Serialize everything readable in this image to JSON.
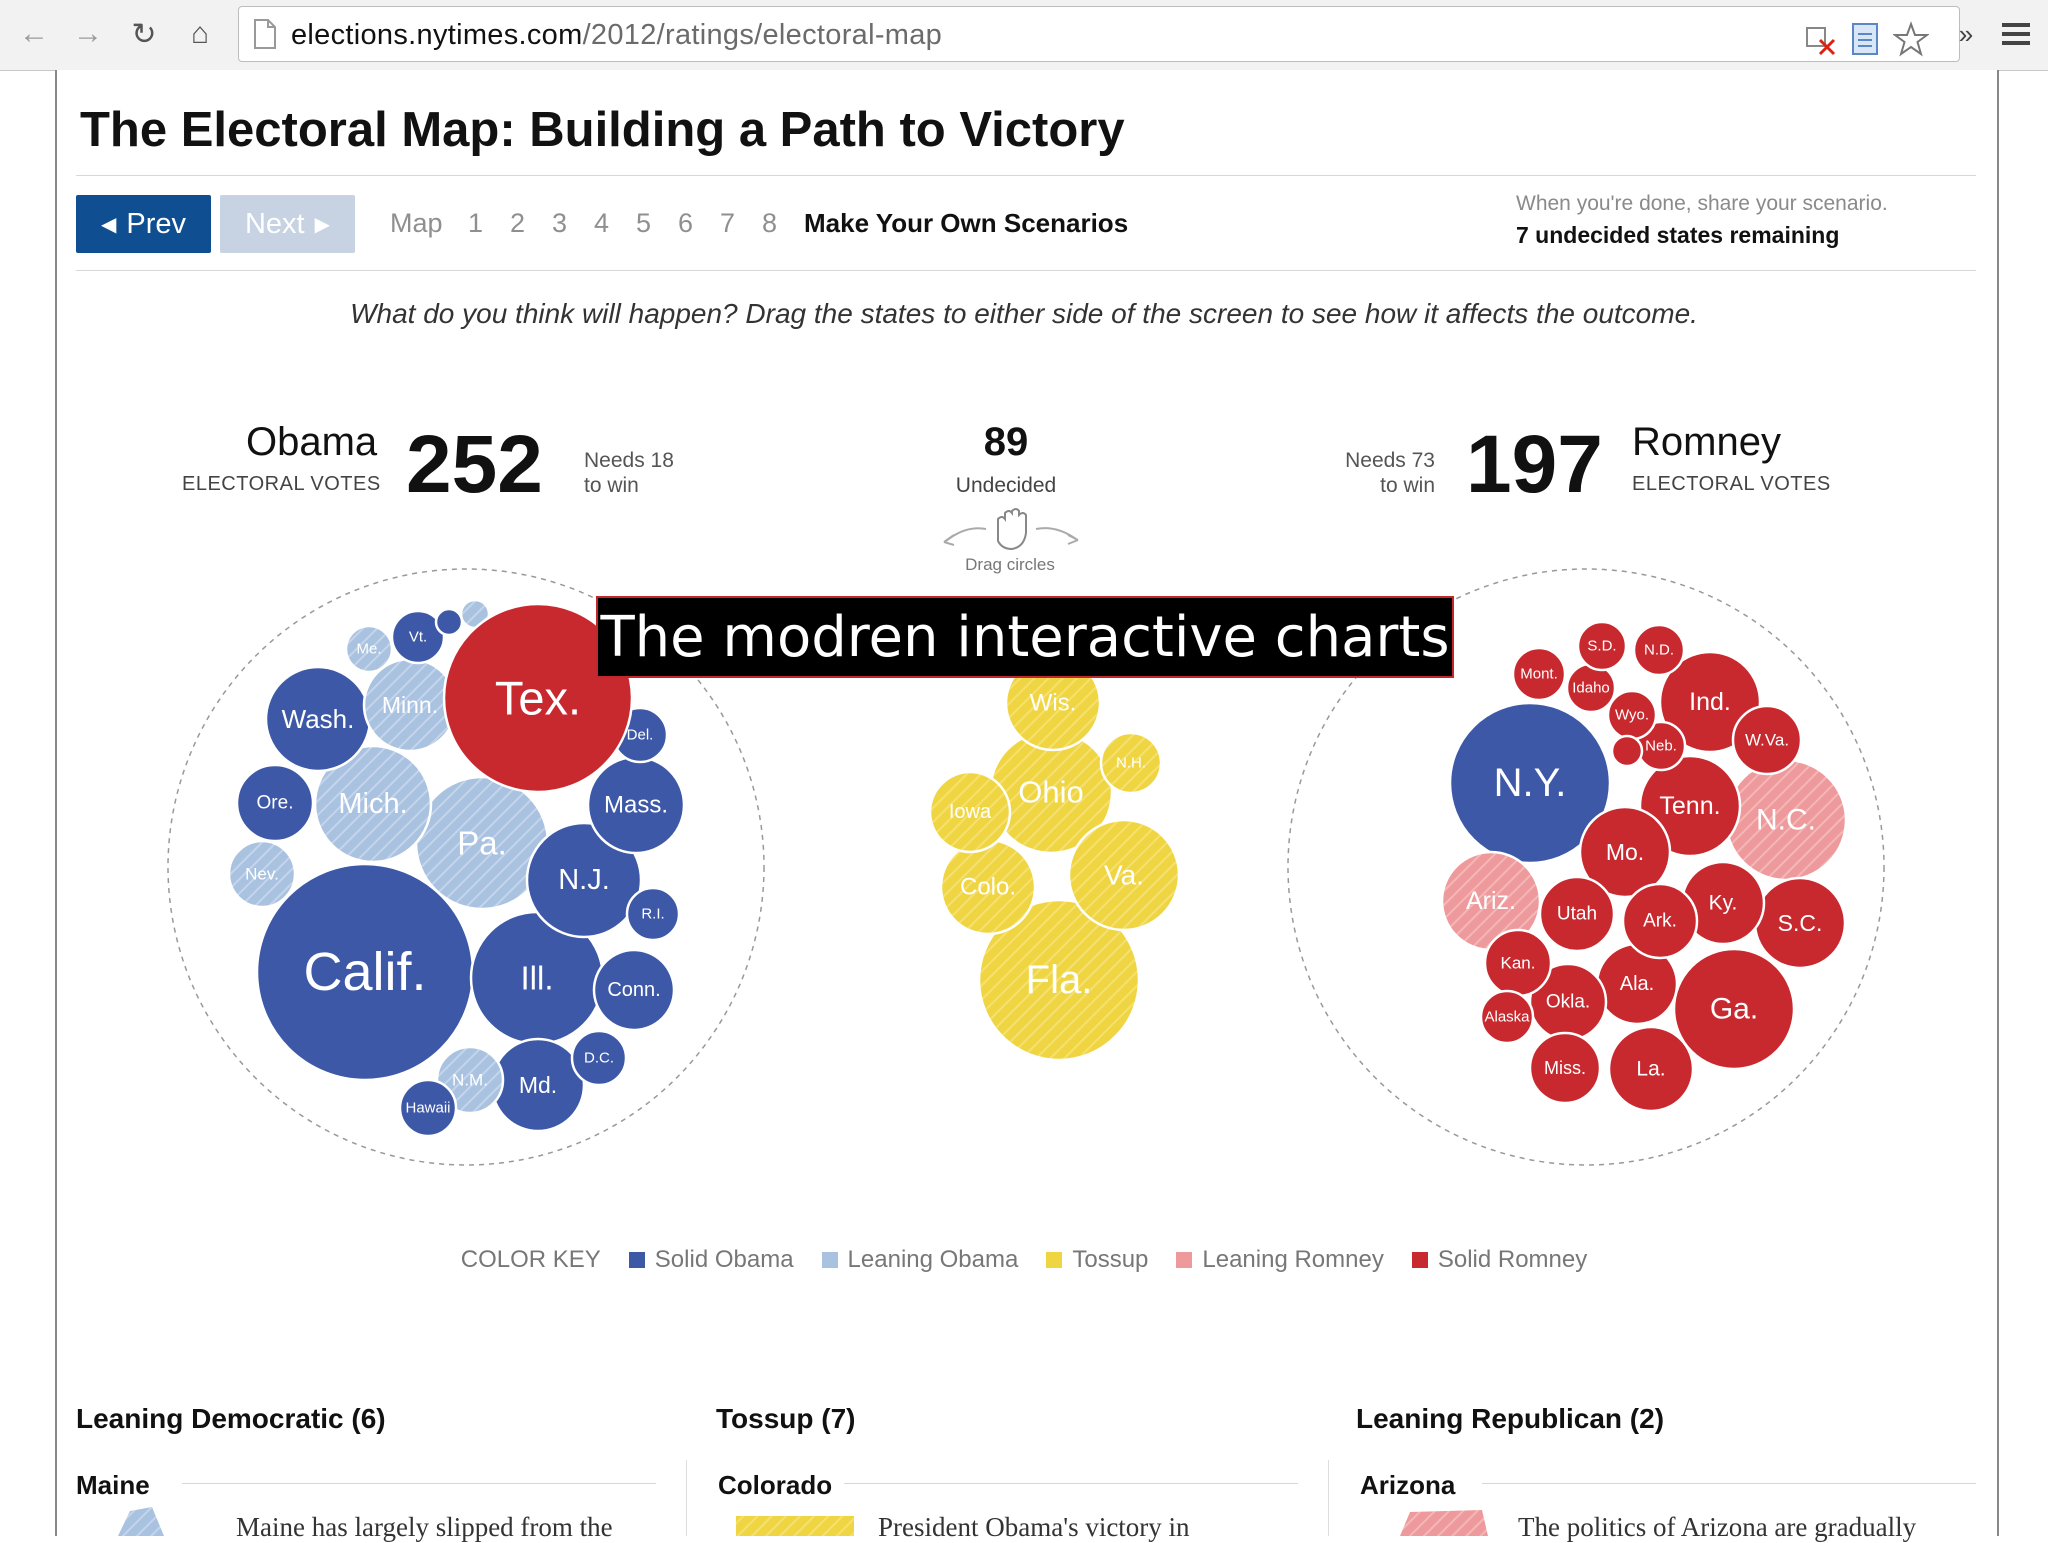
{
  "browser": {
    "url_host": "elections.nytimes.com",
    "url_path": "/2012/ratings/electoral-map",
    "more_label": "»"
  },
  "page": {
    "title": "The Electoral Map: Building a Path to Victory",
    "nav": {
      "prev_label": "Prev",
      "next_label": "Next",
      "steps": [
        "Map",
        "1",
        "2",
        "3",
        "4",
        "5",
        "6",
        "7",
        "8"
      ],
      "make_own": "Make Your Own Scenarios"
    },
    "share_hint": "When you're done, share your scenario.",
    "remaining": "7 undecided states remaining",
    "instruction": "What do you think will happen? Drag the states to either side of the screen to see how it affects the outcome."
  },
  "tally": {
    "obama": {
      "name": "Obama",
      "sub": "ELECTORAL VOTES",
      "votes": "252",
      "needs_line1": "Needs 18",
      "needs_line2": "to win"
    },
    "romney": {
      "name": "Romney",
      "sub": "ELECTORAL VOTES",
      "votes": "197",
      "needs_line1": "Needs 73",
      "needs_line2": "to win"
    },
    "undecided": {
      "count": "89",
      "label": "Undecided",
      "drag_hint": "Drag circles"
    }
  },
  "overlay_banner": "The modren interactive charts",
  "colors": {
    "solid_obama": "#3d58a6",
    "leaning_obama": "#a9c2e0",
    "tossup": "#f0d543",
    "leaning_romney": "#ee9a9c",
    "solid_romney": "#c8292f"
  },
  "color_key": {
    "label": "COLOR KEY",
    "items": [
      {
        "label": "Solid Obama",
        "color": "#3d58a6"
      },
      {
        "label": "Leaning Obama",
        "color": "#a9c2e0"
      },
      {
        "label": "Tossup",
        "color": "#f0d543"
      },
      {
        "label": "Leaning Romney",
        "color": "#ee9a9c"
      },
      {
        "label": "Solid Romney",
        "color": "#c8292f"
      }
    ]
  },
  "bubbles": {
    "obama": [
      {
        "label": "Calif.",
        "rating": "solid_obama"
      },
      {
        "label": "Ill.",
        "rating": "solid_obama"
      },
      {
        "label": "Pa.",
        "rating": "leaning_obama"
      },
      {
        "label": "Mich.",
        "rating": "leaning_obama"
      },
      {
        "label": "N.J.",
        "rating": "solid_obama"
      },
      {
        "label": "Wash.",
        "rating": "solid_obama"
      },
      {
        "label": "Mass.",
        "rating": "solid_obama"
      },
      {
        "label": "Minn.",
        "rating": "leaning_obama"
      },
      {
        "label": "Md.",
        "rating": "solid_obama"
      },
      {
        "label": "Ore.",
        "rating": "solid_obama"
      },
      {
        "label": "Conn.",
        "rating": "solid_obama"
      },
      {
        "label": "Nev.",
        "rating": "leaning_obama"
      },
      {
        "label": "N.M.",
        "rating": "leaning_obama"
      },
      {
        "label": "Hawaii",
        "rating": "solid_obama"
      },
      {
        "label": "R.I.",
        "rating": "solid_obama"
      },
      {
        "label": "Me.",
        "rating": "leaning_obama"
      },
      {
        "label": "Del.",
        "rating": "solid_obama"
      },
      {
        "label": "D.C.",
        "rating": "solid_obama"
      },
      {
        "label": "Vt.",
        "rating": "solid_obama"
      },
      {
        "label": "",
        "rating": "solid_obama"
      },
      {
        "label": "",
        "rating": "leaning_obama"
      },
      {
        "label": "Tex.",
        "rating": "solid_romney"
      }
    ],
    "tossup": [
      {
        "label": "Fla.",
        "rating": "tossup"
      },
      {
        "label": "Ohio",
        "rating": "tossup"
      },
      {
        "label": "Va.",
        "rating": "tossup"
      },
      {
        "label": "Wis.",
        "rating": "tossup"
      },
      {
        "label": "Colo.",
        "rating": "tossup"
      },
      {
        "label": "Iowa",
        "rating": "tossup"
      },
      {
        "label": "N.H.",
        "rating": "tossup"
      }
    ],
    "romney": [
      {
        "label": "N.Y.",
        "rating": "solid_obama"
      },
      {
        "label": "Ga.",
        "rating": "solid_romney"
      },
      {
        "label": "N.C.",
        "rating": "leaning_romney"
      },
      {
        "label": "Tenn.",
        "rating": "solid_romney"
      },
      {
        "label": "Ind.",
        "rating": "solid_romney"
      },
      {
        "label": "Mo.",
        "rating": "solid_romney"
      },
      {
        "label": "Ariz.",
        "rating": "leaning_romney"
      },
      {
        "label": "Ala.",
        "rating": "solid_romney"
      },
      {
        "label": "S.C.",
        "rating": "solid_romney"
      },
      {
        "label": "Ky.",
        "rating": "solid_romney"
      },
      {
        "label": "La.",
        "rating": "solid_romney"
      },
      {
        "label": "Okla.",
        "rating": "solid_romney"
      },
      {
        "label": "Utah",
        "rating": "solid_romney"
      },
      {
        "label": "Ark.",
        "rating": "solid_romney"
      },
      {
        "label": "Kan.",
        "rating": "solid_romney"
      },
      {
        "label": "Miss.",
        "rating": "solid_romney"
      },
      {
        "label": "W.Va.",
        "rating": "solid_romney"
      },
      {
        "label": "Neb.",
        "rating": "solid_romney"
      },
      {
        "label": "Idaho",
        "rating": "solid_romney"
      },
      {
        "label": "Mont.",
        "rating": "solid_romney"
      },
      {
        "label": "Wyo.",
        "rating": "solid_romney"
      },
      {
        "label": "Alaska",
        "rating": "solid_romney"
      },
      {
        "label": "S.D.",
        "rating": "solid_romney"
      },
      {
        "label": "N.D.",
        "rating": "solid_romney"
      },
      {
        "label": "",
        "rating": "solid_romney"
      }
    ]
  },
  "sections": [
    {
      "heading": "Leaning Democratic (6)",
      "state": "Maine",
      "text": "Maine has largely slipped from the"
    },
    {
      "heading": "Tossup (7)",
      "state": "Colorado",
      "text": "President Obama's victory in"
    },
    {
      "heading": "Leaning Republican (2)",
      "state": "Arizona",
      "text": "The politics of Arizona are gradually"
    }
  ]
}
